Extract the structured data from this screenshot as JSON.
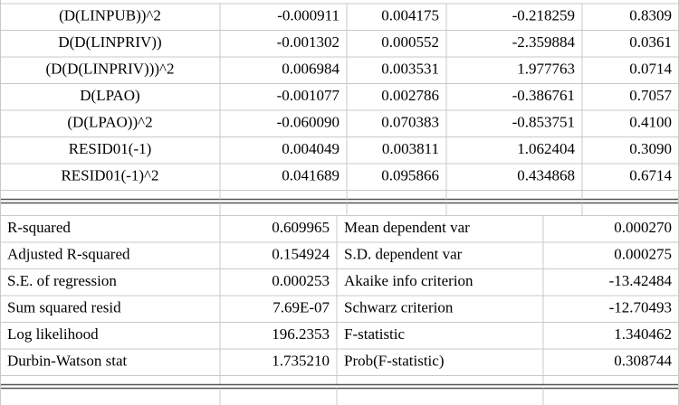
{
  "coefficients": {
    "rows": [
      [
        "(D(LINPUB))^2",
        "-0.000911",
        "0.004175",
        "-0.218259",
        "0.8309"
      ],
      [
        "D(D(LINPRIV))",
        "-0.001302",
        "0.000552",
        "-2.359884",
        "0.0361"
      ],
      [
        "(D(D(LINPRIV)))^2",
        "0.006984",
        "0.003531",
        "1.977763",
        "0.0714"
      ],
      [
        "D(LPAO)",
        "-0.001077",
        "0.002786",
        "-0.386761",
        "0.7057"
      ],
      [
        "(D(LPAO))^2",
        "-0.060090",
        "0.070383",
        "-0.853751",
        "0.4100"
      ],
      [
        "RESID01(-1)",
        "0.004049",
        "0.003811",
        "1.062404",
        "0.3090"
      ],
      [
        "RESID01(-1)^2",
        "0.041689",
        "0.095866",
        "0.434868",
        "0.6714"
      ]
    ]
  },
  "statistics": {
    "rows": [
      [
        "R-squared",
        "0.609965",
        "Mean dependent var",
        "0.000270"
      ],
      [
        "Adjusted R-squared",
        "0.154924",
        "S.D. dependent var",
        "0.000275"
      ],
      [
        "S.E. of regression",
        "0.000253",
        "Akaike info criterion",
        "-13.42484"
      ],
      [
        "Sum squared resid",
        "7.69E-07",
        "Schwarz criterion",
        "-12.70493"
      ],
      [
        "Log likelihood",
        "196.2353",
        "F-statistic",
        "1.340462"
      ],
      [
        "Durbin-Watson stat",
        "1.735210",
        "Prob(F-statistic)",
        "0.308744"
      ]
    ]
  }
}
